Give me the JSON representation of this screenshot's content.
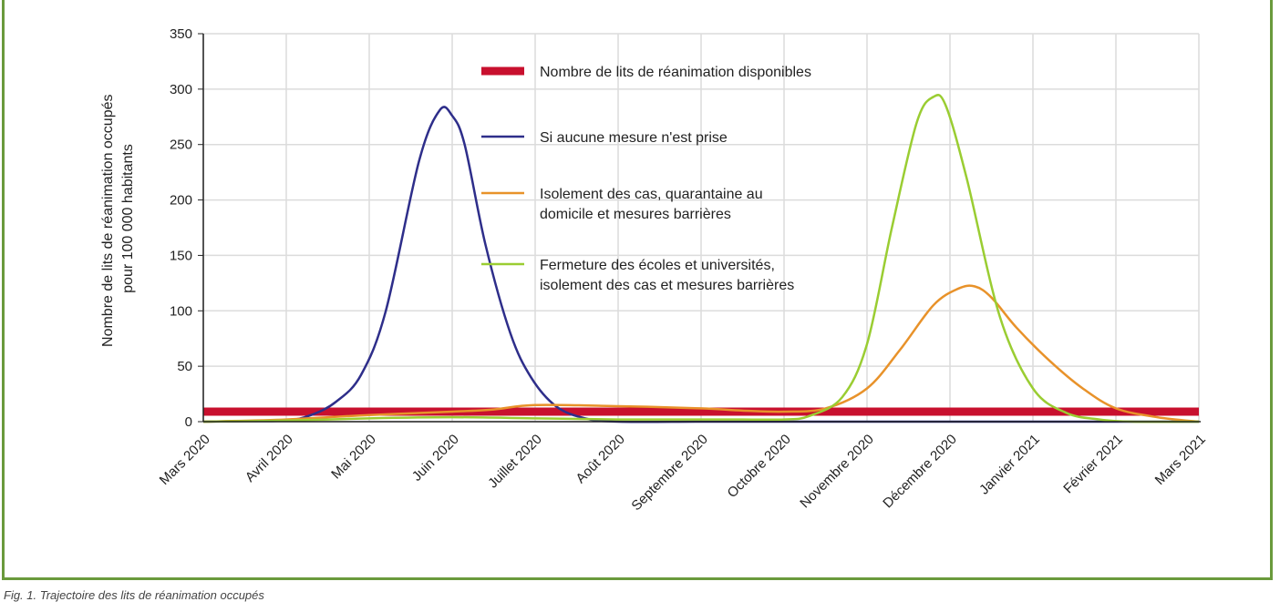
{
  "chart_data": {
    "type": "line",
    "ylabel_lines": [
      "Nombre de lits de réanimation occupés",
      "pour 100 000 habitants"
    ],
    "ylim": [
      0,
      350
    ],
    "yticks": [
      0,
      50,
      100,
      150,
      200,
      250,
      300,
      350
    ],
    "xlim": [
      0,
      12
    ],
    "categories": [
      "Mars 2020",
      "Avril 2020",
      "Mai 2020",
      "Juin 2020",
      "Juillet 2020",
      "Août 2020",
      "Septembre 2020",
      "Octobre 2020",
      "Novembre 2020",
      "Décembre 2020",
      "Janvier 2021",
      "Février 2021",
      "Mars 2021"
    ],
    "grid": true,
    "legend_position": "top-center",
    "series": [
      {
        "name": "Nombre de lits de réanimation disponibles",
        "style": "thick-bar",
        "color": "#c8102e",
        "x": [
          0,
          12
        ],
        "y": [
          9,
          9
        ]
      },
      {
        "name": "Si aucune mesure n'est prise",
        "color": "#2e2e8a",
        "x": [
          0,
          0.5,
          1,
          1.3,
          1.6,
          1.9,
          2.2,
          2.6,
          2.85,
          3.0,
          3.15,
          3.4,
          3.7,
          3.95,
          4.25,
          4.6,
          5,
          6,
          7,
          8,
          9,
          10,
          11,
          12
        ],
        "y": [
          0,
          0.5,
          1,
          6,
          18,
          42,
          100,
          235,
          281,
          276,
          250,
          160,
          80,
          40,
          14,
          3,
          0,
          0,
          0,
          0,
          0,
          0,
          0,
          0
        ]
      },
      {
        "name": "Isolement des cas, quarantaine au domicile et mesures barrières",
        "lines": [
          "Isolement des cas, quarantaine au",
          "domicile et mesures barrières"
        ],
        "color": "#e8922a",
        "x": [
          0,
          1,
          2,
          3,
          3.5,
          4,
          5,
          6,
          6.5,
          7,
          7.5,
          8,
          8.4,
          8.8,
          9.1,
          9.3,
          9.5,
          9.8,
          10.2,
          10.6,
          11,
          11.5,
          12
        ],
        "y": [
          0,
          2,
          6,
          9,
          11,
          15,
          14,
          12,
          10,
          9,
          12,
          30,
          65,
          105,
          120,
          122,
          112,
          85,
          55,
          30,
          12,
          4,
          0
        ]
      },
      {
        "name": "Fermeture des écoles et universités, isolement des cas et mesures barrières",
        "lines": [
          "Fermeture des écoles et universités,",
          "isolement des cas et mesures barrières"
        ],
        "color": "#9acd32",
        "x": [
          0,
          1,
          2,
          3,
          4,
          5,
          6,
          6.5,
          7,
          7.3,
          7.7,
          8.0,
          8.3,
          8.6,
          8.8,
          8.95,
          9.2,
          9.6,
          10.0,
          10.4,
          10.8,
          11.2,
          12
        ],
        "y": [
          0,
          1,
          3,
          4,
          3,
          2,
          2,
          2,
          2,
          5,
          22,
          70,
          175,
          270,
          293,
          285,
          220,
          95,
          30,
          8,
          2,
          0,
          0
        ]
      }
    ]
  },
  "caption": "Fig. 1. Trajectoire des lits de réanimation occupés"
}
